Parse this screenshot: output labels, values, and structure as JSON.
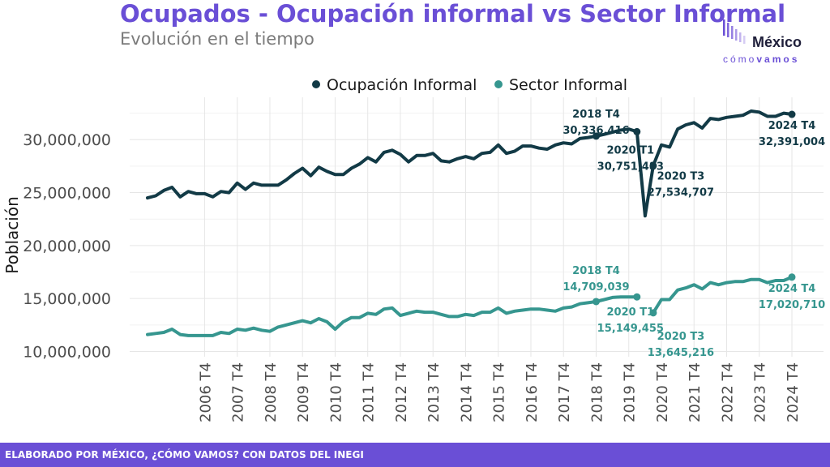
{
  "header": {
    "title": "Ocupados - Ocupación informal vs Sector Informal",
    "subtitle": "Evolución en el tiempo"
  },
  "logo": {
    "line1": "México",
    "line2a": "cómo",
    "line2b": "vamos"
  },
  "footer": {
    "text": "ELABORADO POR MÉXICO, ¿CÓMO VAMOS? CON DATOS DEL INEGI"
  },
  "colors": {
    "ocupacion": "#123a46",
    "sector": "#36968f",
    "accent": "#6a4fd6"
  },
  "chart_data": {
    "type": "line",
    "ylabel": "Población",
    "ylim": [
      9500000,
      34000000
    ],
    "yticks": [
      10000000,
      15000000,
      20000000,
      25000000,
      30000000
    ],
    "ytick_labels": [
      "10,000,000",
      "15,000,000",
      "20,000,000",
      "25,000,000",
      "30,000,000"
    ],
    "xtick_labels": [
      "2006 T4",
      "2007 T4",
      "2008 T4",
      "2009 T4",
      "2010 T4",
      "2011 T4",
      "2012 T4",
      "2013 T4",
      "2014 T4",
      "2015 T4",
      "2016 T4",
      "2017 T4",
      "2018 T4",
      "2019 T4",
      "2020 T4",
      "2021 T4",
      "2022 T4",
      "2023 T4",
      "2024 T4"
    ],
    "legend_position": "top",
    "x": [
      "2005 T1",
      "2005 T2",
      "2005 T3",
      "2005 T4",
      "2006 T1",
      "2006 T2",
      "2006 T3",
      "2006 T4",
      "2007 T1",
      "2007 T2",
      "2007 T3",
      "2007 T4",
      "2008 T1",
      "2008 T2",
      "2008 T3",
      "2008 T4",
      "2009 T1",
      "2009 T2",
      "2009 T3",
      "2009 T4",
      "2010 T1",
      "2010 T2",
      "2010 T3",
      "2010 T4",
      "2011 T1",
      "2011 T2",
      "2011 T3",
      "2011 T4",
      "2012 T1",
      "2012 T2",
      "2012 T3",
      "2012 T4",
      "2013 T1",
      "2013 T2",
      "2013 T3",
      "2013 T4",
      "2014 T1",
      "2014 T2",
      "2014 T3",
      "2014 T4",
      "2015 T1",
      "2015 T2",
      "2015 T3",
      "2015 T4",
      "2016 T1",
      "2016 T2",
      "2016 T3",
      "2016 T4",
      "2017 T1",
      "2017 T2",
      "2017 T3",
      "2017 T4",
      "2018 T1",
      "2018 T2",
      "2018 T3",
      "2018 T4",
      "2019 T1",
      "2019 T2",
      "2019 T3",
      "2019 T4",
      "2020 T1",
      "2020 T2",
      "2020 T3",
      "2020 T4",
      "2021 T1",
      "2021 T2",
      "2021 T3",
      "2021 T4",
      "2022 T1",
      "2022 T2",
      "2022 T3",
      "2022 T4",
      "2023 T1",
      "2023 T2",
      "2023 T3",
      "2023 T4",
      "2024 T1",
      "2024 T2",
      "2024 T3",
      "2024 T4"
    ],
    "series": [
      {
        "name": "Ocupación Informal",
        "values": [
          24500000,
          24700000,
          25200000,
          25500000,
          24600000,
          25100000,
          24900000,
          24900000,
          24600000,
          25100000,
          25000000,
          25900000,
          25300000,
          25900000,
          25700000,
          25700000,
          25700000,
          26200000,
          26800000,
          27300000,
          26600000,
          27400000,
          27000000,
          26700000,
          26700000,
          27300000,
          27700000,
          28300000,
          27900000,
          28800000,
          29000000,
          28600000,
          27900000,
          28500000,
          28500000,
          28700000,
          28000000,
          27900000,
          28200000,
          28400000,
          28200000,
          28700000,
          28800000,
          29500000,
          28700000,
          28900000,
          29400000,
          29400000,
          29200000,
          29100000,
          29500000,
          29700000,
          29600000,
          30100000,
          30200000,
          30336416,
          30500000,
          30700000,
          30900000,
          31000000,
          30751483,
          22800000,
          27534707,
          29500000,
          29300000,
          31000000,
          31400000,
          31600000,
          31100000,
          32000000,
          31900000,
          32100000,
          32200000,
          32300000,
          32700000,
          32600000,
          32200000,
          32200000,
          32500000,
          32391004
        ],
        "markers": [
          55,
          60,
          62,
          79
        ],
        "labels": [
          {
            "line1": "2018 T4",
            "line2": "30,336,416"
          },
          {
            "line1": "2020 T1",
            "line2": "30,751,483"
          },
          {
            "line1": "2020 T3",
            "line2": "27,534,707"
          },
          {
            "line1": "2024 T4",
            "line2": "32,391,004"
          }
        ]
      },
      {
        "name": "Sector Informal",
        "values": [
          11600000,
          11700000,
          11800000,
          12100000,
          11600000,
          11500000,
          11500000,
          11500000,
          11500000,
          11800000,
          11700000,
          12100000,
          12000000,
          12200000,
          12000000,
          11900000,
          12300000,
          12500000,
          12700000,
          12900000,
          12700000,
          13100000,
          12800000,
          12100000,
          12800000,
          13200000,
          13200000,
          13600000,
          13500000,
          14000000,
          14100000,
          13400000,
          13600000,
          13800000,
          13700000,
          13700000,
          13500000,
          13300000,
          13300000,
          13500000,
          13400000,
          13700000,
          13700000,
          14100000,
          13600000,
          13800000,
          13900000,
          14000000,
          14000000,
          13900000,
          13800000,
          14100000,
          14200000,
          14500000,
          14600000,
          14709039,
          14900000,
          15100000,
          15149455,
          15149455,
          15149455,
          null,
          13645216,
          14900000,
          14900000,
          15800000,
          16000000,
          16300000,
          15900000,
          16500000,
          16300000,
          16500000,
          16600000,
          16600000,
          16800000,
          16800000,
          16500000,
          16700000,
          16700000,
          17020710
        ],
        "markers": [
          55,
          60,
          62,
          79
        ],
        "labels": [
          {
            "line1": "2018 T4",
            "line2": "14,709,039"
          },
          {
            "line1": "2020 T1",
            "line2": "15,149,455"
          },
          {
            "line1": "2020 T3",
            "line2": "13,645,216"
          },
          {
            "line1": "2024 T4",
            "line2": "17,020,710"
          }
        ]
      }
    ]
  }
}
